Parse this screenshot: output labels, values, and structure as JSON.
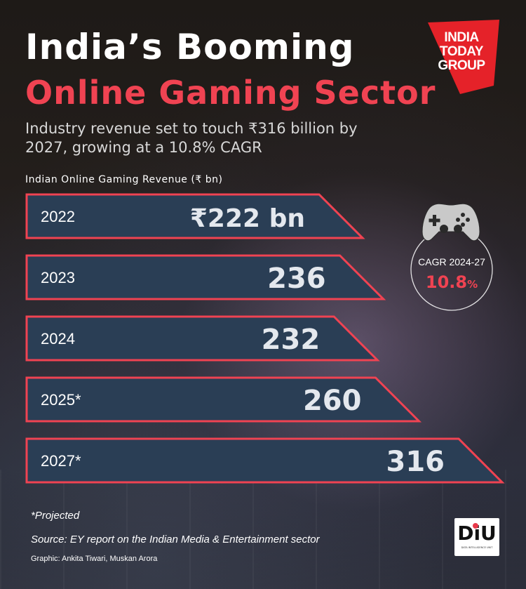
{
  "title_line1": "India’s Booming",
  "title_line2": "Online Gaming Sector",
  "subtitle": "Industry revenue set to touch ₹316 billion by 2027, growing at a 10.8% CAGR",
  "colors": {
    "accent": "#f04352",
    "bar_fill": "#2a3e55",
    "bar_border": "#f04352",
    "background": "#1b1714"
  },
  "logo": {
    "line1": "INDIA",
    "line2": "TODAY",
    "line3": "GROUP",
    "icon": "india-today-group-logo"
  },
  "cagr": {
    "icon": "gamepad-icon",
    "label": "CAGR 2024-27",
    "value": "10.8",
    "unit": "%"
  },
  "chart_data": {
    "type": "bar",
    "orientation": "horizontal",
    "title": "Indian Online Gaming Revenue (₹ bn)",
    "categories": [
      "2022",
      "2023",
      "2024",
      "2025*",
      "2027*"
    ],
    "values": [
      222,
      236,
      232,
      260,
      316
    ],
    "value_labels": [
      "₹222 bn",
      "236",
      "232",
      "260",
      "316"
    ],
    "unit": "₹ bn"
  },
  "footnotes": {
    "projected": "*Projected",
    "source": "Source: EY report on the Indian Media & Entertainment sector",
    "credit": "Graphic: Ankita Tiwari,  Muskan Arora"
  },
  "diu_logo": {
    "text": "DiU",
    "subtext": "DATA INTELLIGENCE UNIT"
  }
}
